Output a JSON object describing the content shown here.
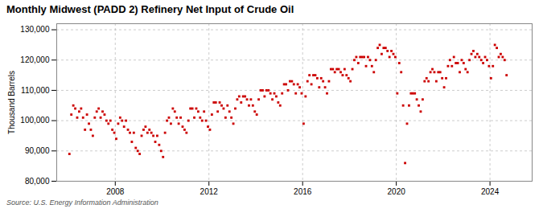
{
  "chart_data": {
    "type": "scatter",
    "title": "Monthly Midwest (PADD 2) Refinery Net Input of Crude Oil",
    "ylabel": "Thousand Barrels",
    "source": "Source: U.S. Energy Information Administration",
    "color": "#cc0000",
    "marker": "square",
    "grid": true,
    "xlim": [
      2005.5,
      2025.8
    ],
    "xticks": [
      2008,
      2012,
      2016,
      2020,
      2024
    ],
    "ylim": [
      80000,
      132000
    ],
    "yticks": [
      {
        "value": 80000,
        "label": "80,000"
      },
      {
        "value": 90000,
        "label": "90,000"
      },
      {
        "value": 100000,
        "label": "100,000"
      },
      {
        "value": 110000,
        "label": "110,000"
      },
      {
        "value": 120000,
        "label": "120,000"
      },
      {
        "value": 130000,
        "label": "130,000"
      }
    ],
    "x": [
      2006.041667,
      2006.125,
      2006.208333,
      2006.291667,
      2006.375,
      2006.458333,
      2006.541667,
      2006.625,
      2006.708333,
      2006.791667,
      2006.875,
      2006.958333,
      2007.041667,
      2007.125,
      2007.208333,
      2007.291667,
      2007.375,
      2007.458333,
      2007.541667,
      2007.625,
      2007.708333,
      2007.791667,
      2007.875,
      2007.958333,
      2008.041667,
      2008.125,
      2008.208333,
      2008.291667,
      2008.375,
      2008.458333,
      2008.541667,
      2008.625,
      2008.708333,
      2008.791667,
      2008.875,
      2008.958333,
      2009.041667,
      2009.125,
      2009.208333,
      2009.291667,
      2009.375,
      2009.458333,
      2009.541667,
      2009.625,
      2009.708333,
      2009.791667,
      2009.875,
      2009.958333,
      2010.041667,
      2010.125,
      2010.208333,
      2010.291667,
      2010.375,
      2010.458333,
      2010.541667,
      2010.625,
      2010.708333,
      2010.791667,
      2010.875,
      2010.958333,
      2011.041667,
      2011.125,
      2011.208333,
      2011.291667,
      2011.375,
      2011.458333,
      2011.541667,
      2011.625,
      2011.708333,
      2011.791667,
      2011.875,
      2011.958333,
      2012.041667,
      2012.125,
      2012.208333,
      2012.291667,
      2012.375,
      2012.458333,
      2012.541667,
      2012.625,
      2012.708333,
      2012.791667,
      2012.875,
      2012.958333,
      2013.041667,
      2013.125,
      2013.208333,
      2013.291667,
      2013.375,
      2013.458333,
      2013.541667,
      2013.625,
      2013.708333,
      2013.791667,
      2013.875,
      2013.958333,
      2014.041667,
      2014.125,
      2014.208333,
      2014.291667,
      2014.375,
      2014.458333,
      2014.541667,
      2014.625,
      2014.708333,
      2014.791667,
      2014.875,
      2014.958333,
      2015.041667,
      2015.125,
      2015.208333,
      2015.291667,
      2015.375,
      2015.458333,
      2015.541667,
      2015.625,
      2015.708333,
      2015.791667,
      2015.875,
      2015.958333,
      2016.041667,
      2016.125,
      2016.208333,
      2016.291667,
      2016.375,
      2016.458333,
      2016.541667,
      2016.625,
      2016.708333,
      2016.791667,
      2016.875,
      2016.958333,
      2017.041667,
      2017.125,
      2017.208333,
      2017.291667,
      2017.375,
      2017.458333,
      2017.541667,
      2017.625,
      2017.708333,
      2017.791667,
      2017.875,
      2017.958333,
      2018.041667,
      2018.125,
      2018.208333,
      2018.291667,
      2018.375,
      2018.458333,
      2018.541667,
      2018.625,
      2018.708333,
      2018.791667,
      2018.875,
      2018.958333,
      2019.041667,
      2019.125,
      2019.208333,
      2019.291667,
      2019.375,
      2019.458333,
      2019.541667,
      2019.625,
      2019.708333,
      2019.791667,
      2019.875,
      2019.958333,
      2020.041667,
      2020.125,
      2020.208333,
      2020.291667,
      2020.375,
      2020.458333,
      2020.541667,
      2020.625,
      2020.708333,
      2020.791667,
      2020.875,
      2020.958333,
      2021.041667,
      2021.125,
      2021.208333,
      2021.291667,
      2021.375,
      2021.458333,
      2021.541667,
      2021.625,
      2021.708333,
      2021.791667,
      2021.875,
      2021.958333,
      2022.041667,
      2022.125,
      2022.208333,
      2022.291667,
      2022.375,
      2022.458333,
      2022.541667,
      2022.625,
      2022.708333,
      2022.791667,
      2022.875,
      2022.958333,
      2023.041667,
      2023.125,
      2023.208333,
      2023.291667,
      2023.375,
      2023.458333,
      2023.541667,
      2023.625,
      2023.708333,
      2023.791667,
      2023.875,
      2023.958333,
      2024.041667,
      2024.125,
      2024.208333,
      2024.291667,
      2024.375,
      2024.458333,
      2024.541667,
      2024.625,
      2024.708333
    ],
    "values": [
      89000,
      102000,
      105000,
      104000,
      101000,
      103000,
      104000,
      101000,
      97000,
      102000,
      99000,
      97000,
      95000,
      101000,
      103000,
      104000,
      101000,
      103000,
      102000,
      100000,
      99000,
      100000,
      97000,
      96000,
      94000,
      99000,
      101000,
      100000,
      98000,
      100000,
      97000,
      96000,
      93000,
      96000,
      91000,
      90000,
      89000,
      95000,
      97000,
      98000,
      96000,
      97000,
      96000,
      95000,
      93000,
      95000,
      92000,
      90000,
      88000,
      96000,
      100000,
      101000,
      99000,
      104000,
      103000,
      101000,
      99000,
      101000,
      98000,
      97000,
      96000,
      100000,
      104000,
      104000,
      101000,
      104000,
      103000,
      101000,
      100000,
      103000,
      100000,
      98000,
      97000,
      102000,
      106000,
      106000,
      103000,
      106000,
      105000,
      104000,
      101000,
      105000,
      103000,
      101000,
      99000,
      104000,
      107000,
      108000,
      106000,
      108000,
      108000,
      107000,
      105000,
      107000,
      105000,
      103000,
      102000,
      107000,
      110000,
      110000,
      108000,
      110000,
      110000,
      109000,
      107000,
      109000,
      108000,
      106000,
      105000,
      109000,
      112000,
      112000,
      110000,
      113000,
      113000,
      112000,
      109000,
      112000,
      111000,
      109000,
      99000,
      108000,
      113000,
      115000,
      112000,
      115000,
      115000,
      114000,
      111000,
      114000,
      113000,
      111000,
      109000,
      113000,
      117000,
      117000,
      116000,
      117000,
      117000,
      116000,
      115000,
      117000,
      115000,
      114000,
      113000,
      117000,
      120000,
      121000,
      119000,
      121000,
      121000,
      121000,
      118000,
      121000,
      120000,
      118000,
      116000,
      120000,
      124000,
      125000,
      122000,
      124000,
      124000,
      123000,
      121000,
      123000,
      122000,
      121000,
      109000,
      119000,
      116000,
      105000,
      86000,
      99000,
      105000,
      109000,
      109000,
      109000,
      107000,
      105000,
      103000,
      107000,
      113000,
      114000,
      113000,
      116000,
      117000,
      116000,
      113000,
      116000,
      116000,
      114000,
      111000,
      114000,
      118000,
      120000,
      118000,
      121000,
      119000,
      119000,
      116000,
      120000,
      119000,
      117000,
      116000,
      120000,
      122000,
      123000,
      121000,
      122000,
      121000,
      120000,
      119000,
      121000,
      120000,
      118000,
      114000,
      118000,
      125000,
      124000,
      121000,
      122000,
      121000,
      120000,
      115000
    ]
  }
}
